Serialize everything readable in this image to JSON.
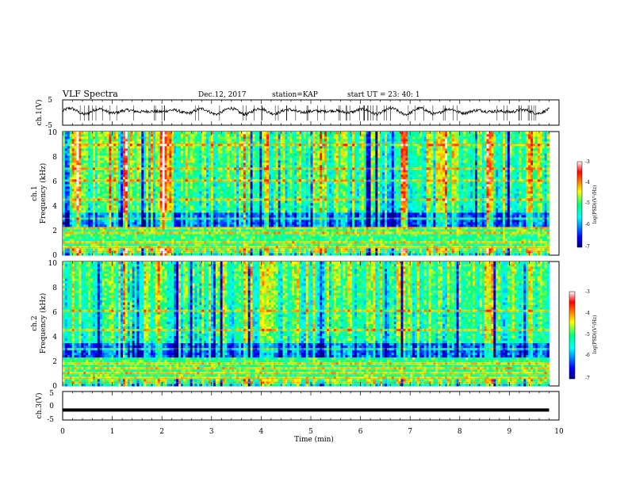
{
  "header": {
    "title": "VLF Spectra",
    "date": "Dec.12, 2017",
    "station": "station=KAP",
    "start": "start  UT =   23: 40: 1"
  },
  "chart_data": [
    {
      "type": "line",
      "panel": "ch1-waveform",
      "ylabel": "ch.1(V)",
      "ylim": [
        -5,
        5
      ],
      "yticks": [
        "5",
        "-5"
      ],
      "xlim": [
        0,
        10
      ],
      "series": [
        {
          "x_range_min": [
            0,
            9.8
          ],
          "approx_min": -1.5,
          "approx_max": 2.5,
          "color": "#000000"
        }
      ]
    },
    {
      "type": "heatmap",
      "panel": "ch1-spectrogram",
      "ylabel": "ch.1\nFrequency (kHz)",
      "ylim": [
        0,
        10
      ],
      "yticks": [
        "0",
        "2",
        "4",
        "6",
        "8",
        "10"
      ],
      "xlim": [
        0,
        9.8
      ],
      "colorbar": {
        "label": "log(PSD)(V²/Hz)",
        "ticks": [
          "-3",
          "-4",
          "-5",
          "-6",
          "-7"
        ],
        "range": [
          -7,
          -3
        ]
      },
      "bright_bursts_min": [
        0.3,
        1.0,
        1.3,
        1.9,
        2.0,
        2.1,
        3.7,
        4.2,
        5.2,
        6.9,
        7.7,
        8.6,
        9.4
      ],
      "bands_kHz": [
        0.3,
        0.6,
        1.0,
        1.8,
        2.2,
        3.0,
        4.5,
        6.0,
        7.0,
        9.0
      ]
    },
    {
      "type": "heatmap",
      "panel": "ch2-spectrogram",
      "ylabel": "ch.2\nFrequency (kHz)",
      "ylim": [
        0,
        10
      ],
      "yticks": [
        "0",
        "2",
        "4",
        "6",
        "8",
        "10"
      ],
      "xlim": [
        0,
        9.8
      ],
      "colorbar": {
        "label": "log(PSD)(V²/Hz)",
        "ticks": [
          "-3",
          "-4",
          "-5",
          "-6",
          "-7"
        ],
        "range": [
          -7,
          -3
        ]
      },
      "bright_bursts_min": [
        1.3,
        2.0,
        3.7,
        8.6
      ],
      "bands_kHz": [
        0.3,
        0.6,
        1.0,
        1.4,
        1.8,
        3.0,
        4.5,
        6.0
      ]
    },
    {
      "type": "line",
      "panel": "ch3-waveform",
      "ylabel": "ch.3(V)",
      "ylim": [
        -5,
        5
      ],
      "yticks": [
        "5",
        "0",
        "-5"
      ],
      "xlim": [
        0,
        10
      ],
      "series": [
        {
          "x_range_min": [
            0,
            9.8
          ],
          "value": -1.5,
          "color": "#000000"
        }
      ]
    }
  ],
  "x_axis": {
    "label": "Time  (min)",
    "ticks": [
      "0",
      "1",
      "2",
      "3",
      "4",
      "5",
      "6",
      "7",
      "8",
      "9",
      "10"
    ]
  },
  "colors": {
    "ink": "#000000",
    "jet_low": "#00008f",
    "jet_mid": "#00ff80",
    "jet_high": "#d00000"
  }
}
